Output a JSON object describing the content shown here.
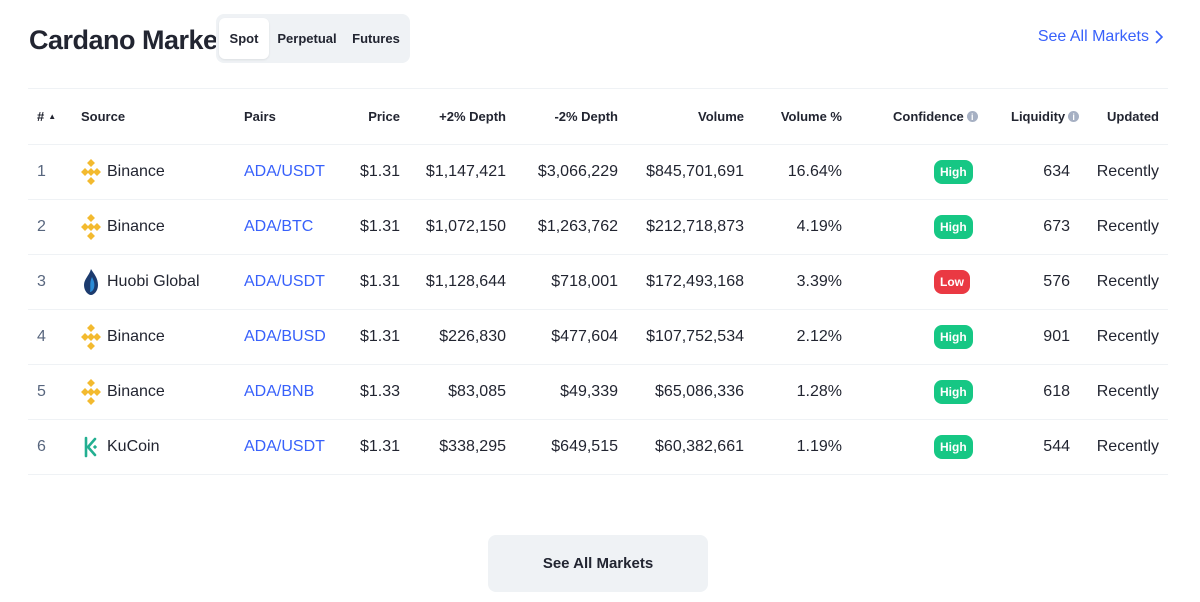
{
  "title": "Cardano Markets",
  "tabs": [
    {
      "label": "Spot",
      "active": true
    },
    {
      "label": "Perpetual",
      "active": false
    },
    {
      "label": "Futures",
      "active": false
    }
  ],
  "see_all_link": "See All Markets",
  "columns": {
    "rank": "#",
    "source": "Source",
    "pairs": "Pairs",
    "price": "Price",
    "depth_plus": "+2% Depth",
    "depth_minus": "-2% Depth",
    "volume": "Volume",
    "volume_pct": "Volume %",
    "confidence": "Confidence",
    "liquidity": "Liquidity",
    "updated": "Updated"
  },
  "rows": [
    {
      "rank": "1",
      "source": "Binance",
      "icon": "binance-icon",
      "pair": "ADA/USDT",
      "price": "$1.31",
      "depth_plus": "$1,147,421",
      "depth_minus": "$3,066,229",
      "volume": "$845,701,691",
      "volume_pct": "16.64%",
      "confidence": "High",
      "liquidity": "634",
      "updated": "Recently"
    },
    {
      "rank": "2",
      "source": "Binance",
      "icon": "binance-icon",
      "pair": "ADA/BTC",
      "price": "$1.31",
      "depth_plus": "$1,072,150",
      "depth_minus": "$1,263,762",
      "volume": "$212,718,873",
      "volume_pct": "4.19%",
      "confidence": "High",
      "liquidity": "673",
      "updated": "Recently"
    },
    {
      "rank": "3",
      "source": "Huobi Global",
      "icon": "huobi-icon",
      "pair": "ADA/USDT",
      "price": "$1.31",
      "depth_plus": "$1,128,644",
      "depth_minus": "$718,001",
      "volume": "$172,493,168",
      "volume_pct": "3.39%",
      "confidence": "Low",
      "liquidity": "576",
      "updated": "Recently"
    },
    {
      "rank": "4",
      "source": "Binance",
      "icon": "binance-icon",
      "pair": "ADA/BUSD",
      "price": "$1.31",
      "depth_plus": "$226,830",
      "depth_minus": "$477,604",
      "volume": "$107,752,534",
      "volume_pct": "2.12%",
      "confidence": "High",
      "liquidity": "901",
      "updated": "Recently"
    },
    {
      "rank": "5",
      "source": "Binance",
      "icon": "binance-icon",
      "pair": "ADA/BNB",
      "price": "$1.33",
      "depth_plus": "$83,085",
      "depth_minus": "$49,339",
      "volume": "$65,086,336",
      "volume_pct": "1.28%",
      "confidence": "High",
      "liquidity": "618",
      "updated": "Recently"
    },
    {
      "rank": "6",
      "source": "KuCoin",
      "icon": "kucoin-icon",
      "pair": "ADA/USDT",
      "price": "$1.31",
      "depth_plus": "$338,295",
      "depth_minus": "$649,515",
      "volume": "$60,382,661",
      "volume_pct": "1.19%",
      "confidence": "High",
      "liquidity": "544",
      "updated": "Recently"
    }
  ],
  "confidence_colors": {
    "High": "#16c784",
    "Low": "#ea3943"
  },
  "accent_color": "#3861fb",
  "bottom_button": "See All Markets"
}
